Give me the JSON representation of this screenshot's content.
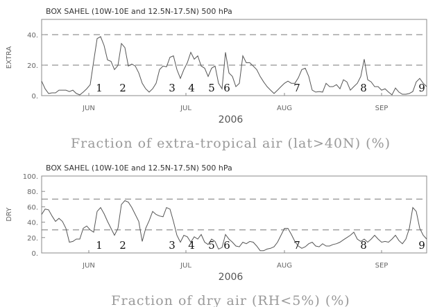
{
  "chart_data": [
    {
      "type": "line",
      "title": "BOX SAHEL (10W-10E and 12.5N-17.5N) 500 hPa",
      "ylabel": "EXTRA",
      "xlabel": "2006",
      "caption": "Fraction of extra-tropical air (lat>40N) (%)",
      "xlim": [
        0,
        111
      ],
      "xticks": [
        {
          "value": 13.6,
          "label": "JUN"
        },
        {
          "value": 41.6,
          "label": "JUL"
        },
        {
          "value": 70,
          "label": "AUG"
        },
        {
          "value": 98,
          "label": "SEP"
        }
      ],
      "ylim": [
        0,
        50
      ],
      "yticks": [
        {
          "value": 0,
          "label": "0."
        },
        {
          "value": 20,
          "label": "20."
        },
        {
          "value": 40,
          "label": "40."
        }
      ],
      "ref_lines": [
        20,
        40
      ],
      "annotations": [
        {
          "text": "1",
          "x": 16.6
        },
        {
          "text": "2",
          "x": 23.4
        },
        {
          "text": "3",
          "x": 37.6
        },
        {
          "text": "4",
          "x": 43.2
        },
        {
          "text": "5",
          "x": 49
        },
        {
          "text": "6",
          "x": 53.4
        },
        {
          "text": "7",
          "x": 73.6
        },
        {
          "text": "8",
          "x": 92.8
        },
        {
          "text": "9",
          "x": 109.6
        }
      ],
      "series": [
        {
          "color": "#555555",
          "x": [
            0,
            1,
            2,
            3,
            4,
            5,
            6,
            7,
            8,
            9,
            10,
            11,
            12,
            13,
            14,
            15,
            16,
            17,
            18,
            19,
            20,
            21,
            22,
            23,
            24,
            25,
            26,
            27,
            28,
            29,
            30,
            31,
            32,
            33,
            34,
            35,
            36,
            37,
            38,
            39,
            40,
            41,
            42,
            43,
            44,
            45,
            46,
            47,
            48,
            49,
            50,
            51,
            52,
            53,
            54,
            55,
            56,
            57,
            58,
            59,
            60,
            61,
            62,
            63,
            64,
            65,
            66,
            67,
            68,
            69,
            70,
            71,
            72,
            73,
            74,
            75,
            76,
            77,
            78,
            79,
            80,
            81,
            82,
            83,
            84,
            85,
            86,
            87,
            88,
            89,
            90,
            91,
            92,
            93,
            94,
            95,
            96,
            97,
            98,
            99,
            100,
            101,
            102,
            103,
            104,
            105,
            106,
            107,
            108,
            109,
            110,
            111
          ],
          "values": [
            9.5,
            4.5,
            1.4,
            1.8,
            1.8,
            3.6,
            3.6,
            3.6,
            2.7,
            3.6,
            1.4,
            0.5,
            2.3,
            4.5,
            7.2,
            22.5,
            37.4,
            38.7,
            32.9,
            23.4,
            22.5,
            17.1,
            19.8,
            34.2,
            31.5,
            19.4,
            20.7,
            19.4,
            14.9,
            8.1,
            4.5,
            2.3,
            4.5,
            8.1,
            17.1,
            19.4,
            18.9,
            25.2,
            26.1,
            17.1,
            11.3,
            17.1,
            21.6,
            28.4,
            23.9,
            26.1,
            19.4,
            18,
            12.6,
            18,
            19.4,
            8.1,
            4.5,
            28.4,
            14.9,
            12.6,
            5.9,
            8.1,
            26.1,
            21.6,
            21.6,
            19.4,
            17.1,
            12.6,
            9,
            5.9,
            3.6,
            1.4,
            3.6,
            5.9,
            8.1,
            9.5,
            8.1,
            8.1,
            11.7,
            17.1,
            18,
            12.6,
            3.6,
            2.3,
            2.7,
            2.3,
            8.1,
            5.9,
            5.9,
            7.2,
            4.5,
            10.4,
            9,
            3.6,
            5.9,
            8.1,
            12.6,
            23.9,
            10.4,
            9,
            5.9,
            5.9,
            3.6,
            4.5,
            2.3,
            0.5,
            5,
            2.3,
            0.9,
            0.9,
            1.4,
            2.7,
            9,
            11.3,
            8.1,
            5.9
          ]
        }
      ]
    },
    {
      "type": "line",
      "title": "BOX SAHEL (10W-10E and 12.5N-17.5N) 500 hPa",
      "ylabel": "DRY",
      "xlabel": "2006",
      "caption": "Fraction of dry air (RH<5%) (%)",
      "xlim": [
        0,
        111
      ],
      "xticks": [
        {
          "value": 13.6,
          "label": "JUN"
        },
        {
          "value": 41.6,
          "label": "JUL"
        },
        {
          "value": 70,
          "label": "AUG"
        },
        {
          "value": 98,
          "label": "SEP"
        }
      ],
      "ylim": [
        0,
        100
      ],
      "yticks": [
        {
          "value": 0,
          "label": "0."
        },
        {
          "value": 20,
          "label": "20."
        },
        {
          "value": 40,
          "label": "40."
        },
        {
          "value": 60,
          "label": "60."
        },
        {
          "value": 80,
          "label": "80."
        },
        {
          "value": 100,
          "label": "100."
        }
      ],
      "ref_lines": [
        30,
        70
      ],
      "annotations": [
        {
          "text": "1",
          "x": 16.6
        },
        {
          "text": "2",
          "x": 23.4
        },
        {
          "text": "3",
          "x": 37.6
        },
        {
          "text": "4",
          "x": 43.2
        },
        {
          "text": "5",
          "x": 49
        },
        {
          "text": "6",
          "x": 53.4
        },
        {
          "text": "7",
          "x": 73.6
        },
        {
          "text": "8",
          "x": 92.8
        },
        {
          "text": "9",
          "x": 109.6
        }
      ],
      "series": [
        {
          "color": "#555555",
          "x": [
            0,
            1,
            2,
            3,
            4,
            5,
            6,
            7,
            8,
            9,
            10,
            11,
            12,
            13,
            14,
            15,
            16,
            17,
            18,
            19,
            20,
            21,
            22,
            23,
            24,
            25,
            26,
            27,
            28,
            29,
            30,
            31,
            32,
            33,
            34,
            35,
            36,
            37,
            38,
            39,
            40,
            41,
            42,
            43,
            44,
            45,
            46,
            47,
            48,
            49,
            50,
            51,
            52,
            53,
            54,
            55,
            56,
            57,
            58,
            59,
            60,
            61,
            62,
            63,
            64,
            65,
            66,
            67,
            68,
            69,
            70,
            71,
            72,
            73,
            74,
            75,
            76,
            77,
            78,
            79,
            80,
            81,
            82,
            83,
            84,
            85,
            86,
            87,
            88,
            89,
            90,
            91,
            92,
            93,
            94,
            95,
            96,
            97,
            98,
            99,
            100,
            101,
            102,
            103,
            104,
            105,
            106,
            107,
            108,
            109,
            110,
            111
          ],
          "values": [
            50,
            57,
            56,
            48,
            41,
            45,
            41,
            32,
            14,
            15,
            18,
            18,
            32,
            35,
            30,
            27,
            54,
            59,
            51,
            41,
            32,
            23,
            32,
            63,
            68,
            66,
            59,
            50,
            41,
            15,
            32,
            42,
            54,
            50,
            48,
            47,
            59,
            57,
            41,
            23,
            14,
            23,
            21,
            14,
            21,
            18,
            24,
            14,
            11,
            18,
            15,
            5,
            7,
            24,
            18,
            14,
            9,
            8,
            14,
            12,
            15,
            14,
            9,
            3,
            3,
            5,
            6,
            8,
            14,
            23,
            32,
            32,
            24,
            15,
            9,
            6,
            8,
            12,
            14,
            9,
            8,
            12,
            9,
            9,
            11,
            12,
            14,
            17,
            20,
            23,
            27,
            18,
            15,
            18,
            14,
            18,
            23,
            18,
            14,
            15,
            14,
            18,
            23,
            16,
            12,
            18,
            32,
            59,
            54,
            32,
            23,
            18
          ]
        }
      ]
    }
  ]
}
